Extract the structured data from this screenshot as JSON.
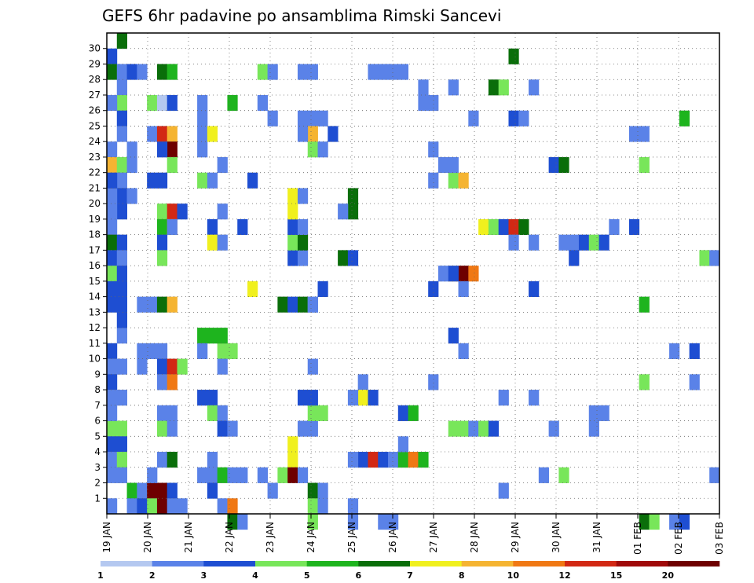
{
  "chart_data": {
    "type": "heatmap",
    "title": "GEFS 6hr padavine po ansamblima Rimski Sancevi",
    "xlabel": "",
    "ylabel": "",
    "x_ticks": [
      "19 JAN",
      "20 JAN",
      "21 JAN",
      "22 JAN",
      "23 JAN",
      "24 JAN",
      "25 JAN",
      "26 JAN",
      "27 JAN",
      "28 JAN",
      "29 JAN",
      "30 JAN",
      "31 JAN",
      "01 FEB",
      "02 FEB",
      "03 FEB"
    ],
    "y_ticks": [
      1,
      2,
      3,
      4,
      5,
      6,
      7,
      8,
      9,
      10,
      11,
      12,
      13,
      14,
      15,
      16,
      17,
      18,
      19,
      20,
      21,
      22,
      23,
      24,
      25,
      26,
      27,
      28,
      29,
      30
    ],
    "n_steps": 61,
    "n_members": 31,
    "grid": "dotted",
    "colorbar": {
      "labels": [
        "1",
        "2",
        "3",
        "4",
        "5",
        "6",
        "7",
        "8",
        "10",
        "12",
        "15",
        "20"
      ],
      "colors": [
        "#b4c8f0",
        "#5a82e8",
        "#1e4ed2",
        "#78e65a",
        "#1eb41e",
        "#0a6e0a",
        "#f0f01e",
        "#f5b432",
        "#f07814",
        "#d22814",
        "#a00a0a",
        "#6e0000"
      ]
    },
    "cells": [
      [
        0,
        29,
        2
      ],
      [
        1,
        30,
        5
      ],
      [
        0,
        28,
        5
      ],
      [
        1,
        28,
        1
      ],
      [
        2,
        28,
        2
      ],
      [
        3,
        28,
        1
      ],
      [
        1,
        27,
        1
      ],
      [
        1,
        26,
        3
      ],
      [
        0,
        26,
        1
      ],
      [
        1,
        25,
        2
      ],
      [
        1,
        24,
        1
      ],
      [
        0,
        23,
        1
      ],
      [
        2,
        23,
        1
      ],
      [
        0,
        22,
        7
      ],
      [
        1,
        22,
        3
      ],
      [
        2,
        22,
        1
      ],
      [
        1,
        21,
        1
      ],
      [
        1,
        20,
        2
      ],
      [
        2,
        20,
        1
      ],
      [
        1,
        19,
        2
      ],
      [
        0,
        20,
        1
      ],
      [
        0,
        21,
        2
      ],
      [
        0,
        19,
        1
      ],
      [
        0,
        18,
        1
      ],
      [
        0,
        17,
        5
      ],
      [
        1,
        17,
        2
      ],
      [
        0,
        16,
        2
      ],
      [
        1,
        16,
        1
      ],
      [
        0,
        15,
        3
      ],
      [
        1,
        15,
        2
      ],
      [
        0,
        14,
        2
      ],
      [
        1,
        14,
        2
      ],
      [
        0,
        13,
        2
      ],
      [
        1,
        13,
        2
      ],
      [
        1,
        11,
        1
      ],
      [
        0,
        10,
        2
      ],
      [
        1,
        9,
        1
      ],
      [
        0,
        9,
        1
      ],
      [
        0,
        8,
        2
      ],
      [
        0,
        7,
        1
      ],
      [
        1,
        7,
        1
      ],
      [
        0,
        5,
        3
      ],
      [
        1,
        5,
        3
      ],
      [
        0,
        4,
        2
      ],
      [
        1,
        4,
        2
      ],
      [
        0,
        3,
        1
      ],
      [
        1,
        3,
        3
      ],
      [
        0,
        2,
        1
      ],
      [
        1,
        2,
        1
      ],
      [
        2,
        1,
        4
      ],
      [
        3,
        1,
        1
      ],
      [
        0,
        0,
        1
      ],
      [
        2,
        0,
        1
      ],
      [
        3,
        0,
        2
      ],
      [
        1,
        12,
        2
      ],
      [
        3,
        10,
        1
      ],
      [
        0,
        6,
        1
      ],
      [
        5,
        28,
        5
      ],
      [
        6,
        28,
        4
      ],
      [
        4,
        26,
        3
      ],
      [
        5,
        26,
        12
      ],
      [
        6,
        26,
        2
      ],
      [
        5,
        24,
        1
      ],
      [
        4,
        24,
        1
      ],
      [
        5,
        24,
        9
      ],
      [
        6,
        24,
        7
      ],
      [
        6,
        23,
        11
      ],
      [
        5,
        23,
        2
      ],
      [
        6,
        22,
        3
      ],
      [
        4,
        21,
        2
      ],
      [
        5,
        21,
        2
      ],
      [
        5,
        19,
        3
      ],
      [
        6,
        19,
        9
      ],
      [
        7,
        19,
        2
      ],
      [
        5,
        18,
        4
      ],
      [
        6,
        18,
        8
      ],
      [
        5,
        17,
        2
      ],
      [
        5,
        16,
        3
      ],
      [
        4,
        13,
        1
      ],
      [
        5,
        13,
        5
      ],
      [
        6,
        13,
        7
      ],
      [
        4,
        10,
        1
      ],
      [
        5,
        10,
        1
      ],
      [
        5,
        9,
        2
      ],
      [
        6,
        9,
        9
      ],
      [
        7,
        9,
        3
      ],
      [
        5,
        8,
        1
      ],
      [
        6,
        8,
        8
      ],
      [
        5,
        6,
        1
      ],
      [
        6,
        6,
        1
      ],
      [
        5,
        5,
        3
      ],
      [
        6,
        5,
        1
      ],
      [
        5,
        3,
        1
      ],
      [
        6,
        3,
        5
      ],
      [
        4,
        1,
        11
      ],
      [
        5,
        1,
        11
      ],
      [
        6,
        1,
        2
      ],
      [
        4,
        0,
        3
      ],
      [
        5,
        0,
        11
      ],
      [
        6,
        0,
        1
      ],
      [
        4,
        2,
        1
      ],
      [
        7,
        0,
        1
      ],
      [
        3,
        9,
        1
      ],
      [
        3,
        13,
        1
      ],
      [
        6,
        18,
        1
      ],
      [
        9,
        26,
        1
      ],
      [
        9,
        25,
        1
      ],
      [
        9,
        24,
        1
      ],
      [
        9,
        23,
        1
      ],
      [
        10,
        24,
        6
      ],
      [
        9,
        21,
        3
      ],
      [
        10,
        21,
        1
      ],
      [
        11,
        22,
        1
      ],
      [
        10,
        18,
        2
      ],
      [
        10,
        17,
        6
      ],
      [
        11,
        17,
        1
      ],
      [
        11,
        19,
        1
      ],
      [
        9,
        11,
        4
      ],
      [
        10,
        11,
        4
      ],
      [
        9,
        10,
        1
      ],
      [
        11,
        10,
        3
      ],
      [
        12,
        10,
        3
      ],
      [
        11,
        11,
        4
      ],
      [
        9,
        7,
        2
      ],
      [
        10,
        7,
        2
      ],
      [
        10,
        6,
        3
      ],
      [
        11,
        6,
        1
      ],
      [
        11,
        5,
        2
      ],
      [
        12,
        5,
        1
      ],
      [
        9,
        2,
        1
      ],
      [
        10,
        2,
        1
      ],
      [
        11,
        2,
        4
      ],
      [
        12,
        2,
        1
      ],
      [
        10,
        1,
        2
      ],
      [
        11,
        0,
        1
      ],
      [
        12,
        0,
        8
      ],
      [
        12,
        -1,
        5
      ],
      [
        13,
        -1,
        1
      ],
      [
        13,
        2,
        1
      ],
      [
        12,
        26,
        4
      ],
      [
        14,
        21,
        2
      ],
      [
        14,
        14,
        6
      ],
      [
        13,
        18,
        2
      ],
      [
        11,
        9,
        1
      ],
      [
        10,
        3,
        1
      ],
      [
        15,
        28,
        3
      ],
      [
        16,
        28,
        1
      ],
      [
        16,
        25,
        1
      ],
      [
        17,
        13,
        5
      ],
      [
        18,
        13,
        2
      ],
      [
        19,
        13,
        5
      ],
      [
        20,
        13,
        1
      ],
      [
        18,
        16,
        2
      ],
      [
        19,
        16,
        1
      ],
      [
        18,
        17,
        3
      ],
      [
        19,
        17,
        5
      ],
      [
        18,
        18,
        2
      ],
      [
        19,
        18,
        1
      ],
      [
        18,
        19,
        6
      ],
      [
        18,
        20,
        6
      ],
      [
        19,
        20,
        1
      ],
      [
        18,
        4,
        6
      ],
      [
        18,
        3,
        6
      ],
      [
        17,
        2,
        3
      ],
      [
        18,
        2,
        11
      ],
      [
        19,
        2,
        1
      ],
      [
        15,
        2,
        1
      ],
      [
        16,
        1,
        1
      ],
      [
        20,
        1,
        5
      ],
      [
        21,
        1,
        1
      ],
      [
        20,
        0,
        3
      ],
      [
        21,
        0,
        1
      ],
      [
        20,
        -1,
        3
      ],
      [
        20,
        5,
        1
      ],
      [
        19,
        5,
        1
      ],
      [
        20,
        6,
        3
      ],
      [
        21,
        6,
        3
      ],
      [
        19,
        7,
        2
      ],
      [
        20,
        7,
        2
      ],
      [
        20,
        9,
        1
      ],
      [
        20,
        13,
        1
      ],
      [
        21,
        14,
        2
      ],
      [
        20,
        25,
        1
      ],
      [
        21,
        25,
        1
      ],
      [
        19,
        25,
        1
      ],
      [
        20,
        24,
        7
      ],
      [
        19,
        24,
        1
      ],
      [
        20,
        23,
        3
      ],
      [
        21,
        23,
        1
      ],
      [
        22,
        24,
        2
      ],
      [
        19,
        28,
        1
      ],
      [
        20,
        28,
        1
      ],
      [
        15,
        26,
        1
      ],
      [
        24,
        19,
        5
      ],
      [
        23,
        16,
        5
      ],
      [
        24,
        16,
        2
      ],
      [
        24,
        20,
        5
      ],
      [
        23,
        19,
        1
      ],
      [
        25,
        8,
        1
      ],
      [
        25,
        7,
        6
      ],
      [
        26,
        7,
        2
      ],
      [
        24,
        7,
        1
      ],
      [
        25,
        3,
        2
      ],
      [
        26,
        3,
        9
      ],
      [
        27,
        3,
        2
      ],
      [
        24,
        3,
        1
      ],
      [
        28,
        3,
        1
      ],
      [
        24,
        0,
        1
      ],
      [
        24,
        -1,
        1
      ],
      [
        27,
        -1,
        1
      ],
      [
        28,
        -1,
        1
      ],
      [
        29,
        3,
        4
      ],
      [
        30,
        3,
        8
      ],
      [
        31,
        3,
        4
      ],
      [
        29,
        6,
        2
      ],
      [
        30,
        6,
        4
      ],
      [
        29,
        4,
        1
      ],
      [
        32,
        8,
        1
      ],
      [
        32,
        14,
        2
      ],
      [
        32,
        21,
        1
      ],
      [
        32,
        23,
        1
      ],
      [
        32,
        26,
        1
      ],
      [
        31,
        26,
        1
      ],
      [
        31,
        27,
        1
      ],
      [
        26,
        28,
        1
      ],
      [
        27,
        28,
        1
      ],
      [
        28,
        28,
        1
      ],
      [
        29,
        28,
        1
      ],
      [
        34,
        21,
        3
      ],
      [
        35,
        21,
        7
      ],
      [
        34,
        22,
        1
      ],
      [
        33,
        22,
        1
      ],
      [
        34,
        15,
        7
      ],
      [
        35,
        15,
        11
      ],
      [
        36,
        15,
        8
      ],
      [
        33,
        15,
        1
      ],
      [
        34,
        15,
        2
      ],
      [
        35,
        14,
        1
      ],
      [
        34,
        11,
        2
      ],
      [
        35,
        10,
        1
      ],
      [
        34,
        5,
        3
      ],
      [
        35,
        5,
        3
      ],
      [
        36,
        5,
        1
      ],
      [
        37,
        5,
        3
      ],
      [
        38,
        5,
        2
      ],
      [
        37,
        18,
        6
      ],
      [
        38,
        18,
        3
      ],
      [
        39,
        18,
        2
      ],
      [
        40,
        18,
        9
      ],
      [
        41,
        18,
        5
      ],
      [
        38,
        27,
        5
      ],
      [
        39,
        27,
        3
      ],
      [
        40,
        29,
        5
      ],
      [
        40,
        25,
        2
      ],
      [
        41,
        25,
        1
      ],
      [
        36,
        25,
        1
      ],
      [
        34,
        27,
        1
      ],
      [
        40,
        17,
        1
      ],
      [
        39,
        7,
        1
      ],
      [
        39,
        1,
        1
      ],
      [
        42,
        14,
        2
      ],
      [
        42,
        27,
        1
      ],
      [
        42,
        17,
        1
      ],
      [
        42,
        7,
        1
      ],
      [
        43,
        2,
        1
      ],
      [
        44,
        5,
        1
      ],
      [
        45,
        2,
        3
      ],
      [
        44,
        22,
        2
      ],
      [
        45,
        22,
        5
      ],
      [
        45,
        17,
        1
      ],
      [
        46,
        17,
        1
      ],
      [
        47,
        17,
        2
      ],
      [
        48,
        17,
        3
      ],
      [
        49,
        17,
        2
      ],
      [
        46,
        16,
        2
      ],
      [
        48,
        6,
        1
      ],
      [
        49,
        6,
        1
      ],
      [
        48,
        5,
        1
      ],
      [
        50,
        18,
        1
      ],
      [
        52,
        18,
        2
      ],
      [
        53,
        13,
        4
      ],
      [
        53,
        8,
        3
      ],
      [
        53,
        22,
        3
      ],
      [
        52,
        24,
        1
      ],
      [
        53,
        24,
        1
      ],
      [
        53,
        -1,
        5
      ],
      [
        54,
        -1,
        3
      ],
      [
        56,
        -1,
        1
      ],
      [
        57,
        -1,
        2
      ],
      [
        56,
        10,
        1
      ],
      [
        58,
        10,
        2
      ],
      [
        58,
        8,
        1
      ],
      [
        59,
        16,
        3
      ],
      [
        60,
        16,
        1
      ],
      [
        60,
        2,
        1
      ],
      [
        57,
        25,
        4
      ]
    ]
  }
}
